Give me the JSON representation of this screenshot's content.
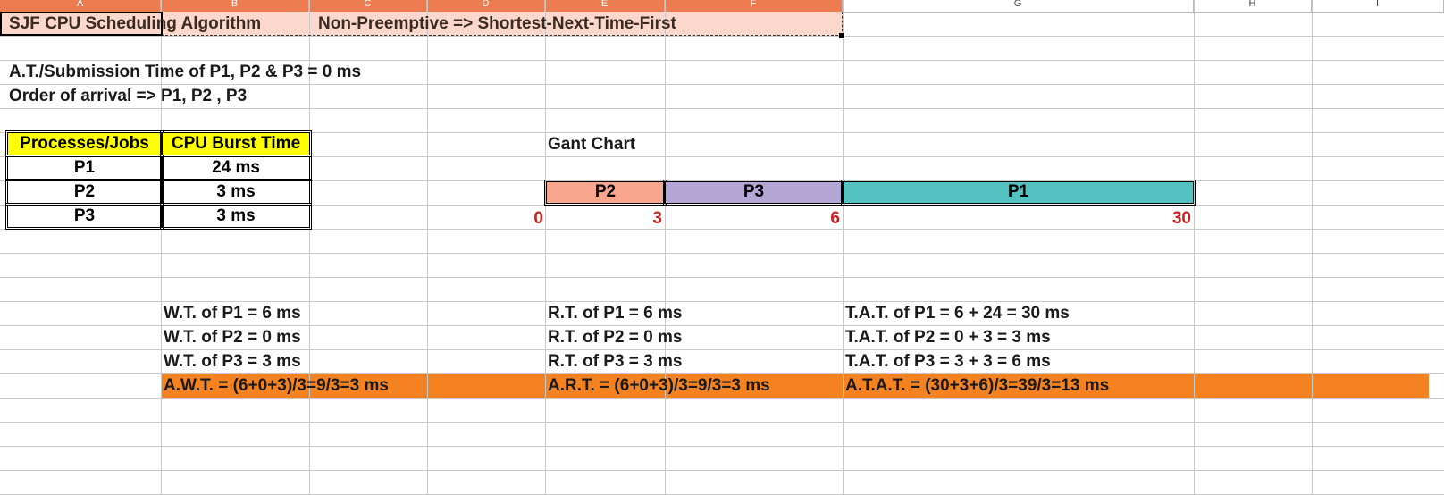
{
  "columns": [
    "A",
    "B",
    "C",
    "D",
    "E",
    "F",
    "G",
    "H",
    "I"
  ],
  "title_row": {
    "a1": "SJF CPU Scheduling Algorithm",
    "c1": "Non-Preemptive => Shortest-Next-Time-First"
  },
  "info": {
    "arrival_time": "A.T./Submission Time of P1, P2 & P3 = 0 ms",
    "arrival_order": "Order of arrival => P1, P2 , P3"
  },
  "burst_table": {
    "headers": [
      "Processes/Jobs",
      "CPU Burst Time"
    ],
    "rows": [
      [
        "P1",
        "24 ms"
      ],
      [
        "P2",
        "3 ms"
      ],
      [
        "P3",
        "3 ms"
      ]
    ]
  },
  "gantt": {
    "title": "Gant Chart",
    "segments": [
      {
        "label": "P2",
        "start": 0,
        "end": 3,
        "color": "#f9a68f"
      },
      {
        "label": "P3",
        "start": 3,
        "end": 6,
        "color": "#b4a7d6"
      },
      {
        "label": "P1",
        "start": 6,
        "end": 30,
        "color": "#55c2c2"
      }
    ],
    "ticks": [
      "0",
      "3",
      "6",
      "30"
    ]
  },
  "waiting_times": [
    "W.T. of P1 =  6  ms",
    "W.T. of P2 =  0 ms",
    "W.T. of P3 =  3 ms"
  ],
  "response_times": [
    "R.T. of P1 = 6 ms",
    "R.T. of P2 = 0 ms",
    "R.T. of P3 = 3 ms"
  ],
  "turnaround_times": [
    "T.A.T. of P1 = 6 + 24 = 30 ms",
    "T.A.T. of P2 = 0 + 3 = 3 ms",
    "T.A.T. of P3 = 3 + 3 = 6 ms"
  ],
  "averages": {
    "awt": "A.W.T. = (6+0+3)/3=9/3=3 ms",
    "art": "A.R.T. = (6+0+3)/3=9/3=3 ms",
    "atat": "A.T.A.T. = (30+3+6)/3=39/3=13 ms"
  },
  "colors": {
    "title_fill": "#fbd8cb",
    "header_fill": "#ffff00",
    "average_fill": "#f58220",
    "tick_color": "#c9211e",
    "selection": "#ec7c50"
  }
}
